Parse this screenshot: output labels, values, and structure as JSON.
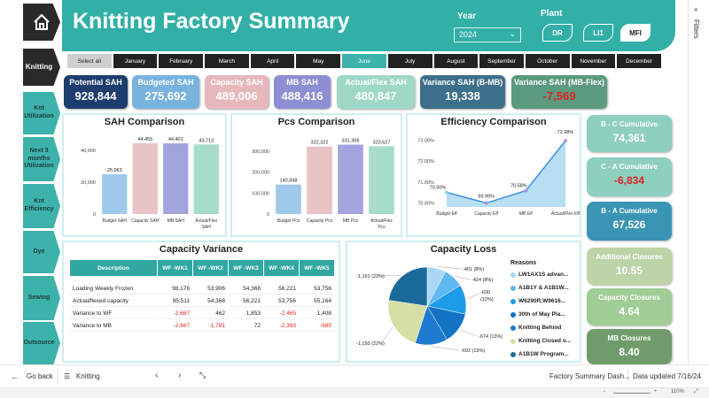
{
  "header": {
    "title": "Knitting Factory Summary",
    "year_label": "Year",
    "year_value": "2024",
    "plant_label": "Plant",
    "plants": [
      "DR",
      "LI1",
      "MFI"
    ],
    "selected_plant": "MFI"
  },
  "filters_label": "Filters",
  "nav": {
    "items": [
      "Knitting",
      "Knt Utilization",
      "Next 3 months Utilization",
      "Knt Efficiency",
      "Dye",
      "Sewing",
      "Outsource"
    ],
    "active": "Knitting"
  },
  "months": {
    "select_all": "Select all",
    "items": [
      "January",
      "February",
      "March",
      "April",
      "May",
      "June",
      "July",
      "August",
      "September",
      "October",
      "November",
      "December"
    ],
    "selected": "June"
  },
  "kpis": [
    {
      "label": "Potential SAH",
      "value": "928,844",
      "color": "#1c3d6e"
    },
    {
      "label": "Budgeted SAH",
      "value": "275,692",
      "color": "#78b3df"
    },
    {
      "label": "Capacity SAH",
      "value": "489,006",
      "color": "#e6b8bd"
    },
    {
      "label": "MB SAH",
      "value": "488,416",
      "color": "#8d8ed3"
    },
    {
      "label": "Actual/Flex SAH",
      "value": "480,847",
      "color": "#9fd8c8"
    },
    {
      "label": "Variance SAH (B-MB)",
      "value": "19,338",
      "color": "#3d6f8a"
    },
    {
      "label": "Variance SAH (MB-Flex)",
      "value": "-7,569",
      "color": "#5c9a80"
    }
  ],
  "sah_comparison": {
    "title": "SAH Comparison",
    "yticks": [
      "40,000",
      "20,000",
      "0"
    ],
    "categories": [
      "Budget SAH",
      "Capacity SAH",
      "MB SAH",
      "Actual/Flex SAH"
    ],
    "labels": [
      "25,063",
      "44,455",
      "44,401",
      "43,713"
    ]
  },
  "pcs_comparison": {
    "title": "Pcs Comparison",
    "yticks": [
      "300,000",
      "200,000",
      "100,000",
      "0"
    ],
    "categories": [
      "Budget Pcs",
      "Capacity Pcs",
      "MB Pcs",
      "Actual/Flex Pcs"
    ],
    "labels": [
      "140,848",
      "322,322",
      "331,306",
      "323,627"
    ]
  },
  "efficiency": {
    "title": "Efficiency Comparison",
    "yticks": [
      "73.00%",
      "72.00%",
      "71.00%",
      "70.00%"
    ],
    "categories": [
      "Budget Eff",
      "Capacity Eff",
      "MB Eff",
      "Actual/Flex Eff"
    ],
    "labels": [
      "70.50%",
      "69.99%",
      "70.58%",
      "72.98%"
    ]
  },
  "chart_data": [
    {
      "type": "bar",
      "title": "SAH Comparison",
      "categories": [
        "Budget SAH",
        "Capacity SAH",
        "MB SAH",
        "Actual/Flex SAH"
      ],
      "values": [
        25063,
        44455,
        44401,
        43713
      ],
      "ylim": [
        0,
        50000
      ],
      "colors": [
        "#9ec9ea",
        "#e8c3c6",
        "#a3a3de",
        "#a7dccc"
      ]
    },
    {
      "type": "bar",
      "title": "Pcs Comparison",
      "categories": [
        "Budget Pcs",
        "Capacity Pcs",
        "MB Pcs",
        "Actual/Flex Pcs"
      ],
      "values": [
        140848,
        322322,
        331306,
        323627
      ],
      "ylim": [
        0,
        380000
      ],
      "colors": [
        "#9ec9ea",
        "#e8c3c6",
        "#a3a3de",
        "#a7dccc"
      ]
    },
    {
      "type": "area",
      "title": "Efficiency Comparison",
      "categories": [
        "Budget Eff",
        "Capacity Eff",
        "MB Eff",
        "Actual/Flex Eff"
      ],
      "values": [
        70.5,
        69.99,
        70.58,
        72.98
      ],
      "ylim": [
        69.8,
        73.2
      ]
    },
    {
      "type": "pie",
      "title": "Capacity Loss",
      "values": [
        -401,
        -424,
        -630,
        -674,
        -692,
        -1150,
        -1161
      ],
      "labels": [
        "-401 (8%)",
        "-424 (8%)",
        "-630 (12%)",
        "-674 (13%)",
        "-692 (13%)",
        "-1,150 (22%)",
        "-1,161 (23%)"
      ],
      "colors": [
        "#a9d6f5",
        "#5fb8f2",
        "#1e9be8",
        "#1374c4",
        "#1f7bd0",
        "#d6dfa5",
        "#1a6b9a"
      ]
    }
  ],
  "cumulatives": [
    {
      "label": "B - C Cumulative",
      "value": "74,361",
      "color": "#8fcfbf",
      "value_color": "#ffffff"
    },
    {
      "label": "C - A Cumulative",
      "value": "-6,834",
      "color": "#8fcfbf",
      "value_color": "#e02020"
    },
    {
      "label": "B - A Cumulative",
      "value": "67,526",
      "color": "#3a95b5",
      "value_color": "#ffffff"
    }
  ],
  "closures": [
    {
      "label": "Additional Closures",
      "value": "10.55",
      "color": "#bdd3a8"
    },
    {
      "label": "Capacity Closures",
      "value": "4.64",
      "color": "#9fcd95"
    },
    {
      "label": "MB Closures",
      "value": "8.40",
      "color": "#6f9c6a"
    }
  ],
  "capacity_variance": {
    "title": "Capacity Variance",
    "headers": [
      "Description",
      "WF -WK1",
      "WF -WK2",
      "WF -WK3",
      "WF -WK4",
      "WF -WK5"
    ],
    "rows": [
      [
        "Loading Weekly Frozen",
        "98,178",
        "53,906",
        "54,368",
        "56,221",
        "53,756"
      ],
      [
        "Actual/flexed capacity",
        "95,511",
        "54,368",
        "56,221",
        "53,756",
        "55,164"
      ],
      [
        "Variance to WF",
        "-2,667",
        "462",
        "1,853",
        "-2,465",
        "1,408"
      ],
      [
        "Variance to MB",
        "-2,667",
        "-1,781",
        "72",
        "-2,393",
        "-985"
      ]
    ]
  },
  "capacity_loss": {
    "title": "Capacity Loss",
    "reasons_label": "Reasons",
    "reasons": [
      {
        "name": "LW1AX1S advan...",
        "color": "#a9d6f5"
      },
      {
        "name": "A1B1Y & A1B1W...",
        "color": "#5fb8f2"
      },
      {
        "name": "W6290R,W9616...",
        "color": "#1e9be8"
      },
      {
        "name": "30th of May Pla...",
        "color": "#1374c4"
      },
      {
        "name": "Knitting Behind",
        "color": "#1f7bd0"
      },
      {
        "name": "Knitting Closed o...",
        "color": "#d6dfa5"
      },
      {
        "name": "A1B1W Program...",
        "color": "#1a6b9a"
      }
    ]
  },
  "bottom": {
    "go_back": "Go back",
    "tab": "Knitting",
    "report_name": "Factory Summary Dash...",
    "updated": "Data updated 7/16/24",
    "zoom": "110%"
  }
}
